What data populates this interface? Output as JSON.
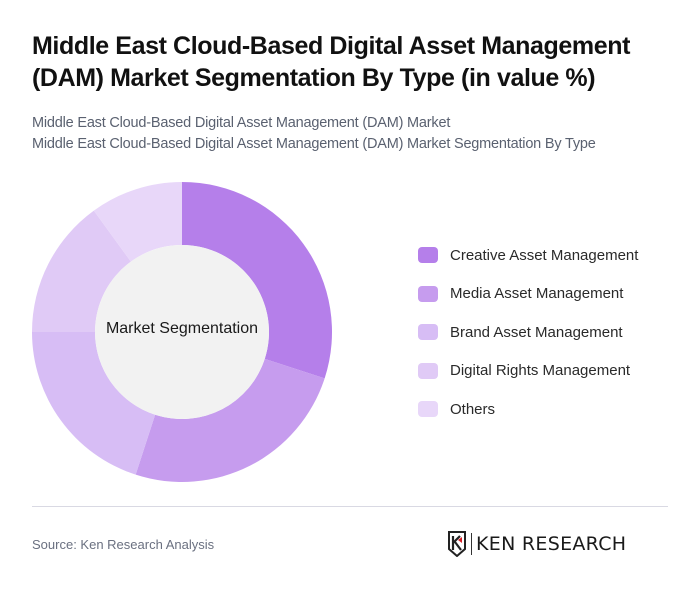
{
  "header": {
    "title": "Middle East Cloud-Based Digital Asset Management (DAM) Market Segmentation By Type (in value %)",
    "subtitle_line1": "Middle East Cloud-Based Digital Asset Management (DAM) Market",
    "subtitle_line2": "Middle East Cloud-Based Digital Asset Management (DAM) Market Segmentation By Type"
  },
  "chart": {
    "center_label": "Market Segmentation",
    "center_fill": "#F2F2F2"
  },
  "legend": {
    "items": [
      {
        "label": "Creative Asset Management",
        "color": "#B57FEA"
      },
      {
        "label": "Media Asset Management",
        "color": "#C69CEE"
      },
      {
        "label": "Brand Asset Management",
        "color": "#D7BDF5"
      },
      {
        "label": "Digital Rights Management",
        "color": "#E0CAF6"
      },
      {
        "label": "Others",
        "color": "#E8D7F9"
      }
    ]
  },
  "footer": {
    "source": "Source: Ken Research Analysis",
    "logo_text": "KEN RESEARCH"
  },
  "chart_data": {
    "type": "pie",
    "variant": "donut",
    "title": "Middle East Cloud-Based Digital Asset Management (DAM) Market Segmentation By Type (in value %)",
    "subtitle": "Middle East Cloud-Based Digital Asset Management (DAM) Market Segmentation By Type",
    "center_label": "Market Segmentation",
    "categories": [
      "Creative Asset Management",
      "Media Asset Management",
      "Brand Asset Management",
      "Digital Rights Management",
      "Others"
    ],
    "values": [
      30,
      25,
      20,
      15,
      10
    ],
    "colors": [
      "#B57FEA",
      "#C69CEE",
      "#D7BDF5",
      "#E0CAF6",
      "#E8D7F9"
    ],
    "unit": "%",
    "start_angle": "top, clockwise",
    "legend_position": "right"
  }
}
